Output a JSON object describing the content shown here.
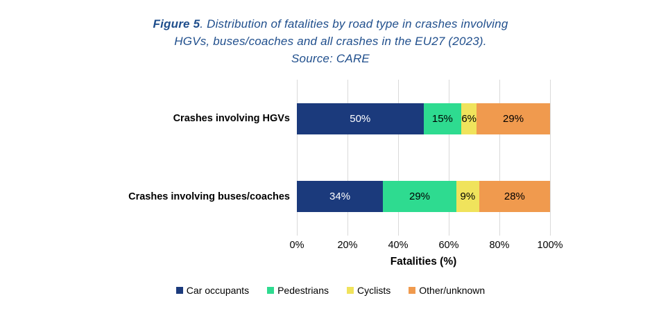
{
  "figure": {
    "title_prefix": "Figure 5",
    "title_line1_rest": ". Distribution of fatalities by road type in crashes involving",
    "title_line2": "HGVs, buses/coaches and all crashes in the EU27 (2023).",
    "title_line3": "Source: CARE",
    "title_color": "#1F4E8C"
  },
  "chart_data": {
    "type": "bar",
    "orientation": "horizontal",
    "stacked": true,
    "title": "Figure 5. Distribution of fatalities by road type in crashes involving HGVs, buses/coaches and all crashes in the EU27 (2023). Source: CARE",
    "categories": [
      "Crashes involving HGVs",
      "Crashes involving buses/coaches"
    ],
    "series": [
      {
        "name": "Car occupants",
        "color": "#1B3A7C",
        "label_color": "#FFFFFF",
        "values": [
          50,
          34
        ]
      },
      {
        "name": "Pedestrians",
        "color": "#2EDB90",
        "label_color": "#000000",
        "values": [
          15,
          29
        ]
      },
      {
        "name": "Cyclists",
        "color": "#F0E35C",
        "label_color": "#000000",
        "values": [
          6,
          9
        ]
      },
      {
        "name": "Other/unknown",
        "color": "#F09A4E",
        "label_color": "#000000",
        "values": [
          29,
          28
        ]
      }
    ],
    "xlabel": "Fatalities (%)",
    "x_ticks": [
      "0%",
      "20%",
      "40%",
      "60%",
      "80%",
      "100%"
    ],
    "xlim": [
      0,
      100
    ],
    "value_suffix": "%",
    "grid": true,
    "gridline_color": "#D9D9D9",
    "legend_position": "bottom"
  }
}
